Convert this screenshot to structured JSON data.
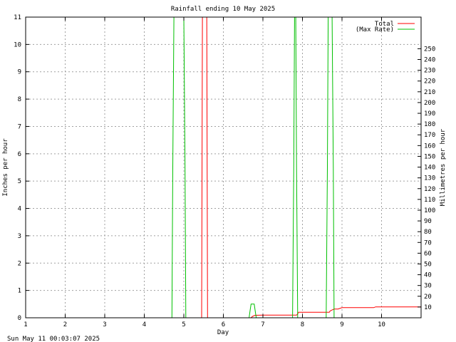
{
  "chart_data": {
    "type": "line",
    "title": "Rainfall ending 10 May 2025",
    "xlabel": "Day",
    "ylabel": "Inches per hour",
    "y2label": "Millimetres per hour",
    "footer": "Sun May 11 00:03:07 2025",
    "xlim": [
      1,
      11
    ],
    "ylim": [
      0,
      11
    ],
    "y2lim": [
      0,
      279.4
    ],
    "x_ticks": [
      1,
      2,
      3,
      4,
      5,
      6,
      7,
      8,
      9,
      10
    ],
    "y_ticks": [
      0,
      1,
      2,
      3,
      4,
      5,
      6,
      7,
      8,
      9,
      10,
      11
    ],
    "y2_ticks": [
      10,
      20,
      30,
      40,
      50,
      60,
      70,
      80,
      90,
      100,
      110,
      120,
      130,
      140,
      150,
      160,
      170,
      180,
      190,
      200,
      210,
      220,
      230,
      240,
      250
    ],
    "grid": true,
    "legend_position": "top-right",
    "series": [
      {
        "name": "Total",
        "color": "#ff0000",
        "x": [
          1,
          5.45,
          5.47,
          5.5,
          5.52,
          5.58,
          5.6,
          6.7,
          6.72,
          6.75,
          6.8,
          7.0,
          7.5,
          7.8,
          7.85,
          7.88,
          7.9,
          8.0,
          8.5,
          8.65,
          8.68,
          8.7,
          8.8,
          8.9,
          9.0,
          9.5,
          9.8,
          9.85,
          10.5,
          11
        ],
        "y": [
          0,
          0,
          11,
          11,
          11,
          11,
          0,
          0,
          0.03,
          0.06,
          0.09,
          0.1,
          0.1,
          0.1,
          0.1,
          0.14,
          0.2,
          0.2,
          0.2,
          0.2,
          0.2,
          0.25,
          0.32,
          0.32,
          0.37,
          0.37,
          0.37,
          0.4,
          0.4,
          0.4
        ]
      },
      {
        "name": "(Max Rate)",
        "color": "#00c000",
        "x": [
          1,
          4.7,
          4.72,
          4.75,
          4.98,
          5.0,
          5.03,
          5.05,
          6.65,
          6.68,
          6.7,
          6.78,
          6.8,
          6.83,
          7.75,
          7.78,
          7.8,
          7.83,
          7.85,
          7.88,
          8.6,
          8.63,
          8.65,
          8.75,
          8.78,
          8.8,
          11
        ],
        "y": [
          0,
          0,
          5.5,
          11,
          11,
          11,
          5.5,
          0,
          0,
          0.3,
          0.5,
          0.5,
          0.3,
          0,
          0,
          5.5,
          11,
          11,
          5.5,
          0,
          0,
          5.5,
          11,
          11,
          5.5,
          0,
          0
        ]
      }
    ]
  }
}
